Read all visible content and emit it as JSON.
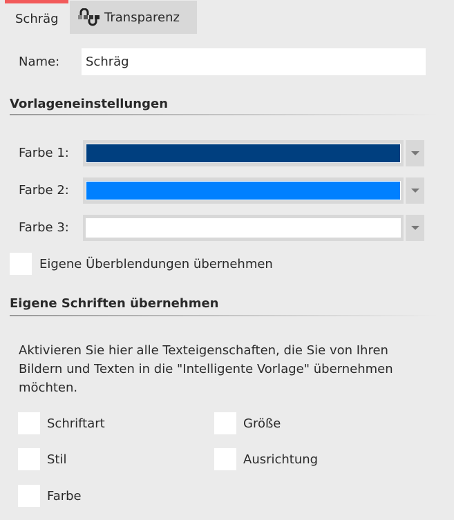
{
  "tabs": [
    {
      "label": "Schräg",
      "active": true
    },
    {
      "label": "Transparenz",
      "icon": "transparency-icon",
      "active": false
    }
  ],
  "accent_color": "#f25a5a",
  "name": {
    "label": "Name:",
    "value": "Schräg"
  },
  "template_settings": {
    "heading": "Vorlageneinstellungen",
    "colors": [
      {
        "label": "Farbe 1:",
        "value": "#003f7f"
      },
      {
        "label": "Farbe 2:",
        "value": "#0080ff"
      },
      {
        "label": "Farbe 3:",
        "value": "#ffffff"
      }
    ],
    "own_transitions": {
      "label": "Eigene Überblendungen übernehmen",
      "checked": false
    }
  },
  "fonts": {
    "heading": "Eigene Schriften übernehmen",
    "description": "Aktivieren Sie hier alle Texteigenschaften, die Sie von Ihren Bildern und Texten in die \"Intelligente Vorlage\" übernehmen möchten.",
    "options": [
      {
        "label": "Schriftart",
        "checked": false
      },
      {
        "label": "Größe",
        "checked": false
      },
      {
        "label": "Stil",
        "checked": false
      },
      {
        "label": "Ausrichtung",
        "checked": false
      },
      {
        "label": "Farbe",
        "checked": false
      }
    ]
  }
}
